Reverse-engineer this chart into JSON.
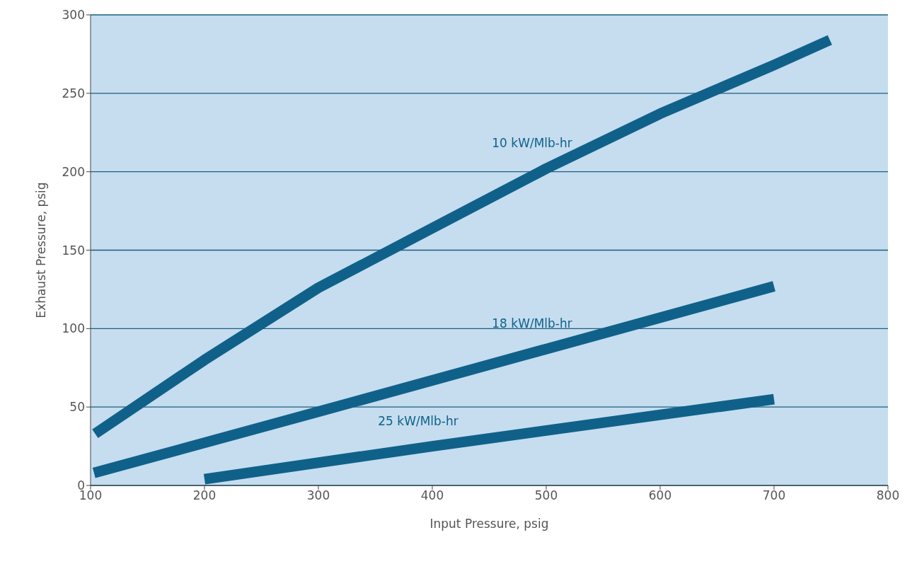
{
  "chart_data": {
    "type": "line",
    "xlabel": "Input Pressure, psig",
    "ylabel": "Exhaust Pressure, psig",
    "xlim": [
      100,
      800
    ],
    "xticks": [
      100,
      200,
      300,
      400,
      500,
      600,
      700,
      800
    ],
    "ylim": [
      0,
      300
    ],
    "yticks": [
      0,
      50,
      100,
      150,
      200,
      250,
      300
    ],
    "grid": "y",
    "marker": "none",
    "line_style": "solid",
    "series": [
      {
        "name": "10 kW/Mlb-hr",
        "color": "#10618a",
        "x": [
          104,
          200,
          300,
          400,
          500,
          600,
          700,
          749
        ],
        "values": [
          33,
          80,
          126,
          164,
          202,
          237,
          268,
          284
        ]
      },
      {
        "name": "18 kW/Mlb-hr",
        "color": "#10618a",
        "x": [
          103,
          300,
          500,
          700
        ],
        "values": [
          8,
          47,
          87,
          127
        ]
      },
      {
        "name": "25 kW/Mlb-hr",
        "color": "#10618a",
        "x": [
          200,
          400,
          700
        ],
        "values": [
          4,
          25,
          55
        ]
      }
    ]
  }
}
